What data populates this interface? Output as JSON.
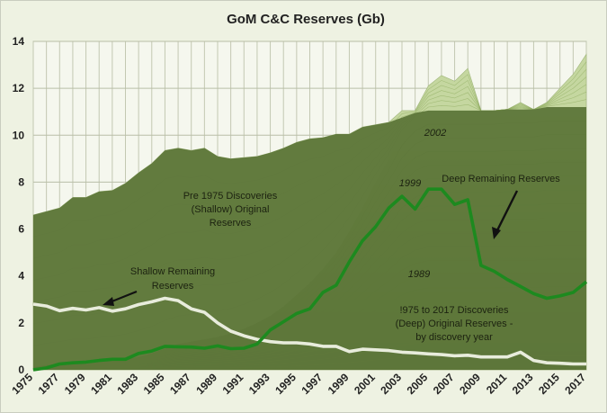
{
  "chart_data": {
    "type": "area",
    "title": "GoM C&C Reserves (Gb)",
    "xlabel": "",
    "ylabel": "",
    "ylim": [
      0,
      14
    ],
    "y_ticks": [
      "0",
      "2",
      "4",
      "6",
      "8",
      "10",
      "12",
      "14"
    ],
    "grid": true,
    "x": [
      1975,
      1976,
      1977,
      1978,
      1979,
      1980,
      1981,
      1982,
      1983,
      1984,
      1985,
      1986,
      1987,
      1988,
      1989,
      1990,
      1991,
      1992,
      1993,
      1994,
      1995,
      1996,
      1997,
      1998,
      1999,
      2000,
      2001,
      2002,
      2003,
      2004,
      2005,
      2006,
      2007,
      2008,
      2009,
      2010,
      2011,
      2012,
      2013,
      2014,
      2015,
      2016,
      2017
    ],
    "x_tick_labels": [
      "1975",
      "1977",
      "1979",
      "1981",
      "1983",
      "1985",
      "1987",
      "1989",
      "1991",
      "1993",
      "1995",
      "1997",
      "1999",
      "2001",
      "2003",
      "2005",
      "2007",
      "2009",
      "2011",
      "2013",
      "2015",
      "2017"
    ],
    "series": [
      {
        "role": "shallow_original_area",
        "color": "#5e773a",
        "values": [
          6.6,
          6.75,
          6.9,
          7.35,
          7.35,
          7.6,
          7.65,
          7.95,
          8.4,
          8.8,
          9.35,
          9.45,
          9.35,
          9.45,
          9.1,
          9.0,
          9.05,
          9.1,
          9.25,
          9.45,
          9.7,
          9.85,
          9.9,
          10.05,
          10.05,
          10.35,
          10.45,
          10.55,
          10.75,
          10.95,
          11.05,
          11.05,
          11.05,
          11.05,
          11.05,
          11.05,
          11.1,
          11.1,
          11.1,
          11.2,
          11.2,
          11.2,
          11.2
        ]
      },
      {
        "role": "total_envelope",
        "color": "#c5d7a0",
        "values": [
          6.6,
          6.75,
          6.9,
          7.35,
          7.35,
          7.6,
          7.65,
          7.95,
          8.4,
          8.8,
          9.35,
          9.45,
          9.35,
          9.45,
          9.1,
          9.0,
          9.05,
          9.1,
          9.25,
          9.45,
          9.7,
          9.85,
          9.9,
          10.05,
          10.05,
          10.35,
          10.45,
          10.55,
          11.05,
          11.05,
          12.1,
          12.55,
          12.3,
          12.85,
          11.05,
          11.05,
          11.1,
          11.4,
          11.1,
          11.4,
          12.0,
          12.6,
          13.45
        ]
      },
      {
        "role": "deep_original_area",
        "color": "#9ebf5e",
        "values": [
          0.1,
          0.2,
          0.25,
          0.3,
          0.3,
          0.35,
          0.4,
          0.45,
          0.55,
          0.7,
          0.9,
          1.1,
          1.2,
          1.3,
          1.4,
          1.55,
          1.75,
          2.0,
          2.3,
          2.7,
          3.2,
          3.7,
          4.3,
          5.0,
          5.9,
          6.9,
          8.0,
          9.0,
          10.1,
          10.75,
          11.05,
          11.05,
          11.05,
          11.05,
          11.05,
          11.05,
          11.1,
          11.1,
          11.1,
          11.2,
          11.2,
          11.2,
          11.2
        ]
      },
      {
        "name": "Shallow Remaining Reserves",
        "color": "#e8ecdc",
        "values": [
          2.8,
          2.72,
          2.52,
          2.62,
          2.55,
          2.65,
          2.5,
          2.6,
          2.78,
          2.9,
          3.05,
          2.95,
          2.6,
          2.45,
          2.0,
          1.65,
          1.45,
          1.3,
          1.2,
          1.15,
          1.15,
          1.1,
          1.0,
          1.0,
          0.78,
          0.88,
          0.85,
          0.82,
          0.75,
          0.72,
          0.68,
          0.65,
          0.6,
          0.62,
          0.55,
          0.55,
          0.55,
          0.75,
          0.4,
          0.3,
          0.28,
          0.25,
          0.25
        ]
      },
      {
        "name": "Deep Remaining Reserves",
        "color": "#1d8a1f",
        "values": [
          0.0,
          0.08,
          0.25,
          0.3,
          0.33,
          0.4,
          0.45,
          0.45,
          0.7,
          0.8,
          1.0,
          0.98,
          0.97,
          0.92,
          1.02,
          0.9,
          0.92,
          1.1,
          1.7,
          2.05,
          2.4,
          2.6,
          3.3,
          3.6,
          4.6,
          5.5,
          6.1,
          6.9,
          7.4,
          6.85,
          7.7,
          7.7,
          7.05,
          7.25,
          4.45,
          4.2,
          3.85,
          3.55,
          3.25,
          3.05,
          3.15,
          3.3,
          3.75
        ]
      }
    ],
    "annotations": [
      "Pre 1975 Discoveries",
      "(Shallow) Original",
      "Reserves",
      "Shallow Remaining",
      "Reserves",
      "Deep Remaining Reserves",
      "!975 to 2017 Discoveries",
      "(Deep) Original Reserves -",
      "by discovery year",
      "1999",
      "2002",
      "1989"
    ]
  }
}
